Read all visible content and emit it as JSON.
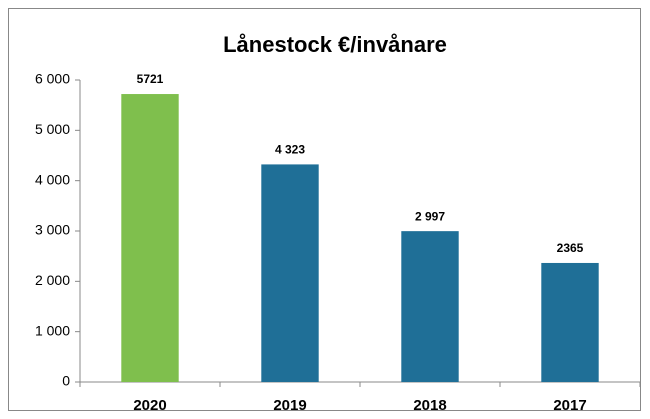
{
  "chart_data": {
    "type": "bar",
    "title": "Lånestock €/invånare",
    "categories": [
      "2020",
      "2019",
      "2018",
      "2017"
    ],
    "values": [
      5721,
      4323,
      2997,
      2365
    ],
    "value_labels": [
      "5721",
      "4 323",
      "2 997",
      "2365"
    ],
    "colors": [
      "#7fbf4d",
      "#1f6f97",
      "#1f6f97",
      "#1f6f97"
    ],
    "ylim": [
      0,
      6000
    ],
    "yticks": [
      0,
      {
        "value": 1000,
        "label": "1 000"
      },
      {
        "value": 2000,
        "label": "2 000"
      },
      {
        "value": 3000,
        "label": "3 000"
      },
      {
        "value": 4000,
        "label": "4 000"
      },
      {
        "value": 5000,
        "label": "5 000"
      },
      {
        "value": 6000,
        "label": "6 000"
      }
    ],
    "grid": false
  }
}
